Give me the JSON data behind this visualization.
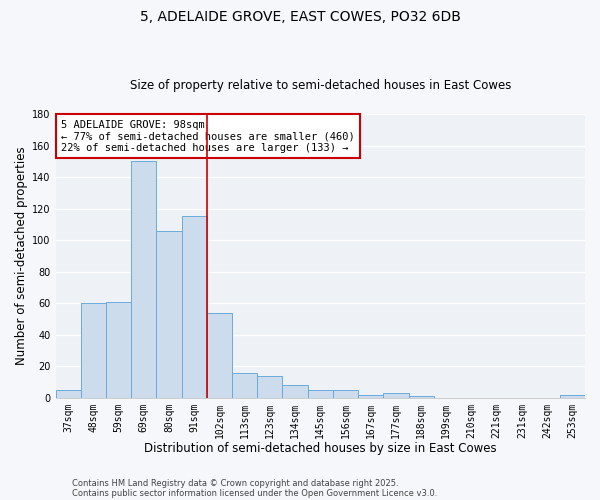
{
  "title": "5, ADELAIDE GROVE, EAST COWES, PO32 6DB",
  "subtitle": "Size of property relative to semi-detached houses in East Cowes",
  "xlabel": "Distribution of semi-detached houses by size in East Cowes",
  "ylabel": "Number of semi-detached properties",
  "categories": [
    "37sqm",
    "48sqm",
    "59sqm",
    "69sqm",
    "80sqm",
    "91sqm",
    "102sqm",
    "113sqm",
    "123sqm",
    "134sqm",
    "145sqm",
    "156sqm",
    "167sqm",
    "177sqm",
    "188sqm",
    "199sqm",
    "210sqm",
    "221sqm",
    "231sqm",
    "242sqm",
    "253sqm"
  ],
  "values": [
    5,
    60,
    61,
    150,
    106,
    115,
    54,
    16,
    14,
    8,
    5,
    5,
    2,
    3,
    1,
    0,
    0,
    0,
    0,
    0,
    2
  ],
  "bar_color": "#ccdcec",
  "bar_edge_color": "#6aabdb",
  "vline_x_index": 6.0,
  "vline_color": "#cc0000",
  "annotation_box_color": "#ffffff",
  "annotation_box_edge": "#cc0000",
  "ylim": [
    0,
    180
  ],
  "yticks": [
    0,
    20,
    40,
    60,
    80,
    100,
    120,
    140,
    160,
    180
  ],
  "footer1": "Contains HM Land Registry data © Crown copyright and database right 2025.",
  "footer2": "Contains public sector information licensed under the Open Government Licence v3.0.",
  "bg_color": "#f5f7fa",
  "plot_bg_color": "#eef2f7",
  "grid_color": "#ffffff",
  "title_fontsize": 10,
  "subtitle_fontsize": 8.5,
  "axis_label_fontsize": 8.5,
  "tick_fontsize": 7,
  "annotation_fontsize": 7.5,
  "footer_fontsize": 6
}
